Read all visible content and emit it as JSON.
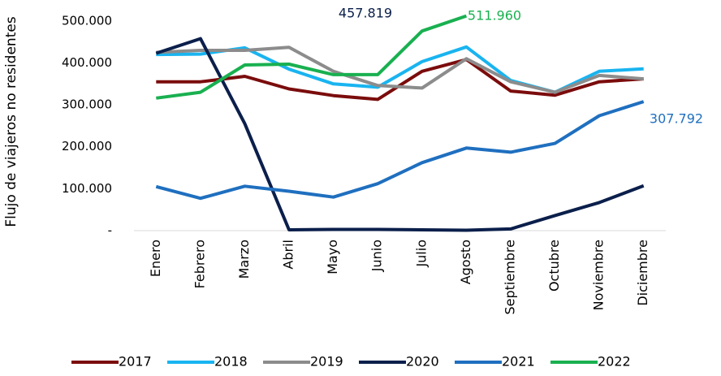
{
  "chart_data": {
    "type": "line",
    "y_label": "Flujo de viajeros no residentes",
    "categories": [
      "Enero",
      "Febrero",
      "Marzo",
      "Abril",
      "Mayo",
      "Junio",
      "Julio",
      "Agosto",
      "Septiembre",
      "Octubre",
      "Noviembre",
      "Diciembre"
    ],
    "series": [
      {
        "name": "2017",
        "color": "#7b0c0c",
        "values": [
          355000,
          355000,
          368000,
          338000,
          322000,
          313000,
          380000,
          408000,
          333000,
          323000,
          355000,
          362000
        ]
      },
      {
        "name": "2018",
        "color": "#19b4f0",
        "values": [
          420000,
          421000,
          436000,
          385000,
          350000,
          342000,
          403000,
          438000,
          358000,
          330000,
          380000,
          386000
        ]
      },
      {
        "name": "2019",
        "color": "#8c8c8c",
        "values": [
          425000,
          430000,
          430000,
          437000,
          380000,
          346000,
          340000,
          410000,
          355000,
          330000,
          370000,
          362000
        ]
      },
      {
        "name": "2020",
        "color": "#0b1f4b",
        "values": [
          423000,
          457819,
          255000,
          2000,
          3000,
          3000,
          2000,
          1000,
          4000,
          36000,
          67000,
          107000
        ],
        "value_labels": [
          null,
          "457.819",
          null,
          null,
          null,
          null,
          null,
          null,
          null,
          null,
          null,
          null
        ]
      },
      {
        "name": "2021",
        "color": "#1f6fbf",
        "values": [
          105000,
          77000,
          106000,
          94000,
          80000,
          112000,
          162000,
          197000,
          187000,
          208000,
          274000,
          307792
        ],
        "value_labels": [
          null,
          null,
          null,
          null,
          null,
          null,
          null,
          null,
          null,
          null,
          null,
          "307.792"
        ]
      },
      {
        "name": "2022",
        "color": "#19b050",
        "values": [
          316000,
          330000,
          395000,
          397000,
          372000,
          372000,
          476000,
          511960,
          null,
          null,
          null,
          null
        ],
        "value_labels": [
          null,
          null,
          null,
          null,
          null,
          null,
          null,
          "511.960",
          null,
          null,
          null,
          null
        ]
      }
    ],
    "ylim": [
      0,
      550000
    ],
    "yticks": [
      {
        "value": 0,
        "label": "-"
      },
      {
        "value": 100000,
        "label": "100.000"
      },
      {
        "value": 200000,
        "label": "200.000"
      },
      {
        "value": 300000,
        "label": "300.000"
      },
      {
        "value": 400000,
        "label": "400.000"
      },
      {
        "value": 500000,
        "label": "500.000"
      }
    ],
    "grid": false
  }
}
